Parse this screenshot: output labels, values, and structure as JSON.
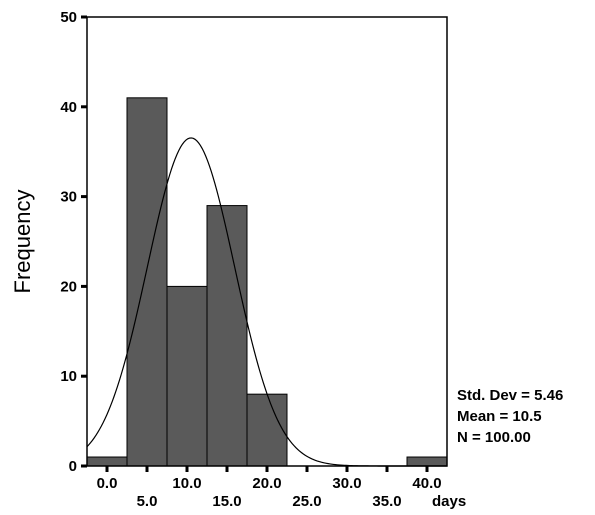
{
  "chart_data": {
    "type": "bar",
    "ylabel": "Frequency",
    "xlabel": "days",
    "ylim": [
      0,
      50
    ],
    "yticks": [
      0,
      10,
      20,
      30,
      40,
      50
    ],
    "xlim": [
      -2.5,
      42.5
    ],
    "xticks_upper": [
      "0.0",
      "10.0",
      "20.0",
      "30.0",
      "40.0"
    ],
    "xticks_upper_values": [
      0,
      10,
      20,
      30,
      40
    ],
    "xticks_lower": [
      "5.0",
      "15.0",
      "25.0",
      "35.0"
    ],
    "xticks_lower_values": [
      5,
      15,
      25,
      35
    ],
    "bin_width": 5,
    "bins": [
      {
        "center": 0,
        "count": 1
      },
      {
        "center": 5,
        "count": 41
      },
      {
        "center": 10,
        "count": 20
      },
      {
        "center": 15,
        "count": 29
      },
      {
        "center": 20,
        "count": 8
      },
      {
        "center": 25,
        "count": 0
      },
      {
        "center": 30,
        "count": 0
      },
      {
        "center": 35,
        "count": 0
      },
      {
        "center": 40,
        "count": 1
      }
    ],
    "normal_curve": {
      "mean": 10.5,
      "std_dev": 5.46,
      "n": 100
    },
    "bar_color": "#5a5a5a",
    "stats": {
      "std_dev": "Std. Dev = 5.46",
      "mean": "Mean = 10.5",
      "n": "N = 100.00"
    }
  }
}
